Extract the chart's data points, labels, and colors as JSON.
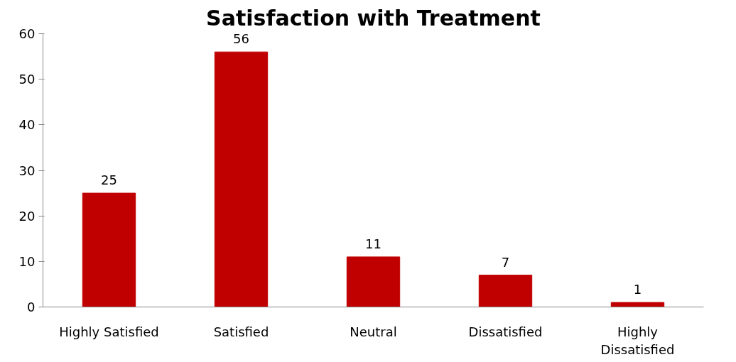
{
  "chart_data": {
    "type": "bar",
    "title": "Satisfaction with Treatment",
    "categories": [
      "Highly Satisfied",
      "Satisfied",
      "Neutral",
      "Dissatisfied",
      "Highly Dissatisfied"
    ],
    "values": [
      25,
      56,
      11,
      7,
      1
    ],
    "color": "#c00000",
    "ylim": [
      0,
      60
    ],
    "yticks": [
      0,
      10,
      20,
      30,
      40,
      50,
      60
    ],
    "grid": false,
    "data_labels": true
  }
}
